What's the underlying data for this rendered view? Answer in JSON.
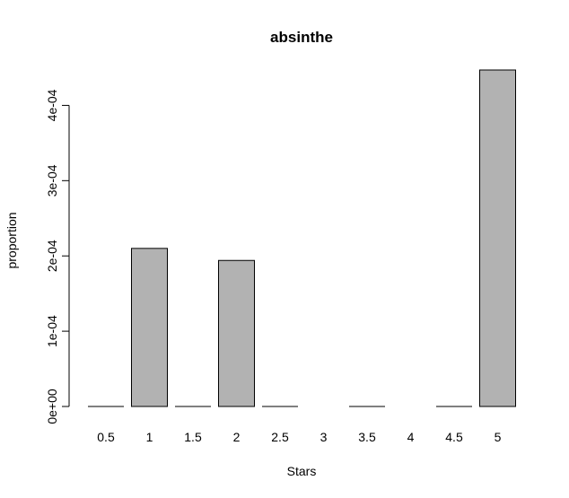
{
  "chart_data": {
    "type": "bar",
    "title": "absinthe",
    "xlabel": "Stars",
    "ylabel": "proportion",
    "categories": [
      "0.5",
      "1",
      "1.5",
      "2",
      "2.5",
      "3",
      "3.5",
      "4",
      "4.5",
      "5"
    ],
    "values": [
      0,
      0.00021,
      0,
      0.000194,
      0,
      0,
      0,
      0,
      0,
      0.000447
    ],
    "ylim": [
      0,
      0.000447
    ],
    "yticks": [
      0,
      0.0001,
      0.0002,
      0.0003,
      0.0004
    ],
    "ytick_labels": [
      "0e+00",
      "1e-04",
      "2e-04",
      "3e-04",
      "4e-04"
    ],
    "bar_color": "#b2b2b2",
    "grid": false,
    "legend": "none"
  }
}
